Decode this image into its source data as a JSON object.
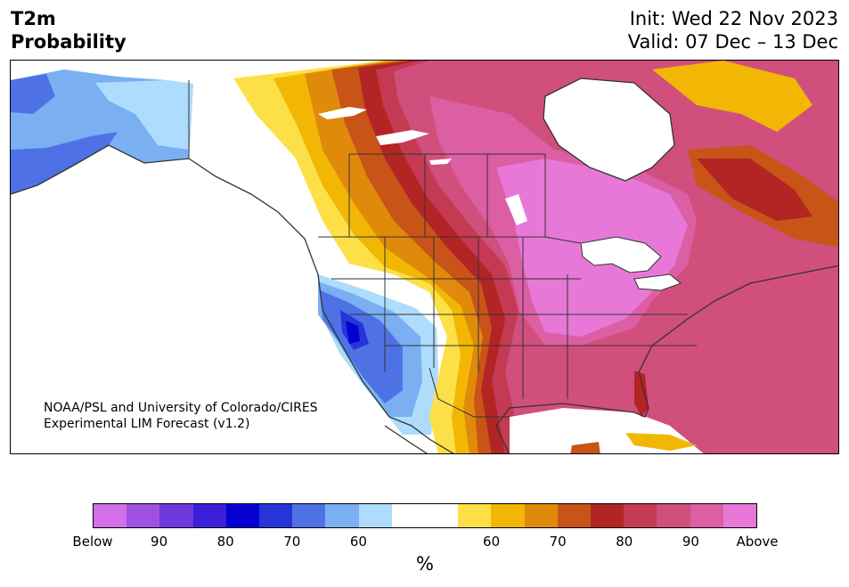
{
  "header": {
    "variable": "T2m",
    "product": "Probability",
    "init": "Init: Wed 22 Nov 2023",
    "valid": "Valid: 07 Dec – 13 Dec"
  },
  "map": {
    "credit_line1": "NOAA/PSL and University of Colorado/CIRES",
    "credit_line2": "Experimental LIM Forecast (v1.2)"
  },
  "colorbar": {
    "unit": "%",
    "colors": [
      "#d36fe9",
      "#9f51e3",
      "#6e38dc",
      "#3c1fd8",
      "#0400d1",
      "#2535d8",
      "#4e72e6",
      "#7ab0f2",
      "#aedcfc",
      "#ffffff",
      "#ffffff",
      "#fde047",
      "#f2b705",
      "#e08a0b",
      "#c85418",
      "#b32424",
      "#c43a53",
      "#d14f7c",
      "#dc5ea3",
      "#e778d8"
    ],
    "ticks": [
      "Below",
      "90",
      "80",
      "70",
      "60",
      "60",
      "70",
      "80",
      "90",
      "Above"
    ]
  },
  "colors": {
    "land": "#ffffff",
    "coast": "#333333",
    "above_magenta": "#e778d8",
    "above_pink": "#d14f7c",
    "above_red": "#b32424",
    "above_orange": "#c85418",
    "above_gold": "#f2b705",
    "above_yellow": "#fde047",
    "below_light": "#aedcfc",
    "below_mid": "#7ab0f2",
    "below_blue": "#4e72e6",
    "below_deep": "#0400d1"
  }
}
